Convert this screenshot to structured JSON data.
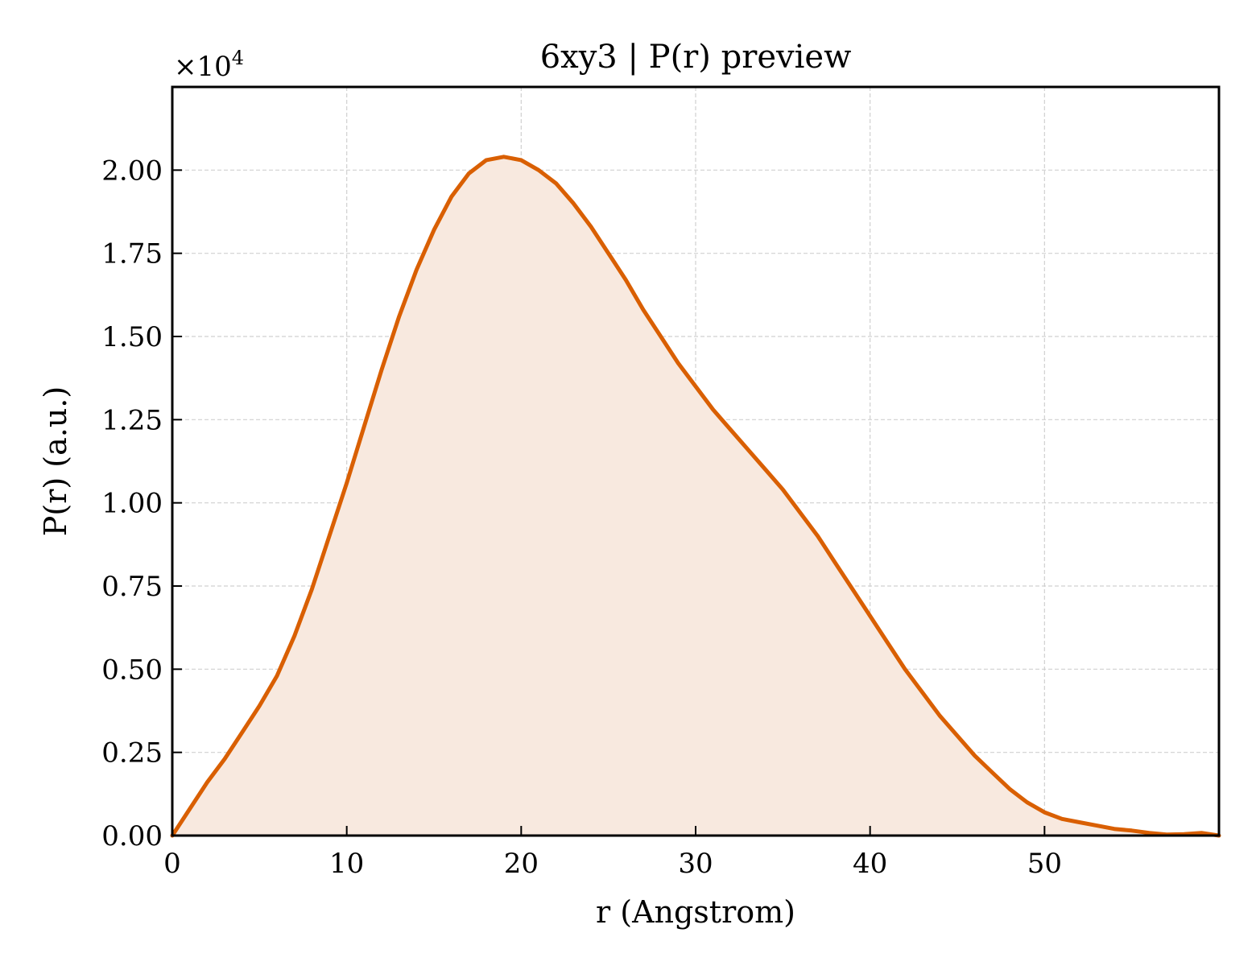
{
  "chart_data": {
    "type": "area",
    "title": "6xy3 | P(r) preview",
    "xlabel": "r (Angstrom)",
    "ylabel": "P(r) (a.u.)",
    "y_multiplier_text": "×10",
    "y_multiplier_exponent": "4",
    "xlim": [
      0,
      60
    ],
    "ylim": [
      0,
      2.25
    ],
    "x_ticks": [
      0,
      10,
      20,
      30,
      40,
      50
    ],
    "x_tick_labels": [
      "0",
      "10",
      "20",
      "30",
      "40",
      "50"
    ],
    "y_ticks": [
      0,
      0.25,
      0.5,
      0.75,
      1.0,
      1.25,
      1.5,
      1.75,
      2.0
    ],
    "y_tick_labels": [
      "0.00",
      "0.25",
      "0.50",
      "0.75",
      "1.00",
      "1.25",
      "1.50",
      "1.75",
      "2.00"
    ],
    "grid": true,
    "line_color": "#d95f02",
    "fill_color": "#f8e9df",
    "series": [
      {
        "x": [
          0,
          1,
          2,
          3,
          4,
          5,
          6,
          7,
          8,
          9,
          10,
          11,
          12,
          13,
          14,
          15,
          16,
          17,
          18,
          19,
          20,
          21,
          22,
          23,
          24,
          25,
          26,
          27,
          28,
          29,
          30,
          31,
          32,
          33,
          34,
          35,
          36,
          37,
          38,
          39,
          40,
          41,
          42,
          43,
          44,
          45,
          46,
          47,
          48,
          49,
          50,
          51,
          52,
          53,
          54,
          55,
          56,
          57,
          58,
          59,
          60
        ],
        "y": [
          0.0,
          0.08,
          0.16,
          0.23,
          0.31,
          0.39,
          0.48,
          0.6,
          0.74,
          0.9,
          1.06,
          1.23,
          1.4,
          1.56,
          1.7,
          1.82,
          1.92,
          1.99,
          2.03,
          2.04,
          2.03,
          2.0,
          1.96,
          1.9,
          1.83,
          1.75,
          1.67,
          1.58,
          1.5,
          1.42,
          1.35,
          1.28,
          1.22,
          1.16,
          1.1,
          1.04,
          0.97,
          0.9,
          0.82,
          0.74,
          0.66,
          0.58,
          0.5,
          0.43,
          0.36,
          0.3,
          0.24,
          0.19,
          0.14,
          0.1,
          0.07,
          0.05,
          0.04,
          0.03,
          0.02,
          0.015,
          0.008,
          0.003,
          0.004,
          0.008,
          0.0
        ]
      }
    ]
  }
}
